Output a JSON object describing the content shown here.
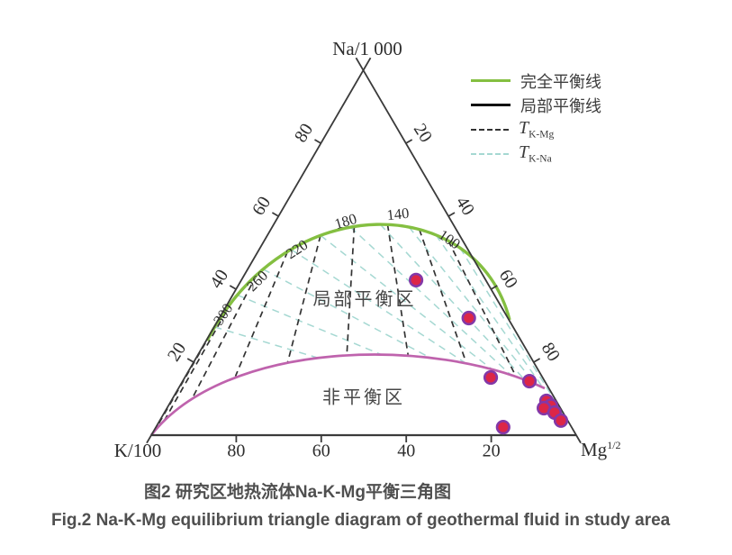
{
  "figure": {
    "caption_zh": "图2 研究区地热流体Na-K-Mg平衡三角图",
    "caption_en": "Fig.2 Na-K-Mg equilibrium triangle diagram of geothermal fluid in study area"
  },
  "legend": {
    "items": [
      {
        "label": "完全平衡线"
      },
      {
        "label": "局部平衡线"
      },
      {
        "label_main": "T",
        "label_sub": "K-Mg"
      },
      {
        "label_main": "T",
        "label_sub": "K-Na"
      }
    ]
  },
  "chart_data": {
    "type": "scatter",
    "subtype": "ternary-giggenbach",
    "apex_top_label": "Na/1 000",
    "apex_left_label": "K/100",
    "apex_right_label_base": "Mg",
    "apex_right_label_sup": "1/2",
    "zone_labels": [
      {
        "text": "局部平衡区",
        "x": 405,
        "y": 330
      },
      {
        "text": "非平衡区",
        "x": 404,
        "y": 439
      }
    ],
    "axis_ticks": {
      "fractions": [
        0.2,
        0.4,
        0.6,
        0.8
      ],
      "left_labels": [
        "20",
        "40",
        "60",
        "80"
      ],
      "right_labels": [
        "20",
        "40",
        "60",
        "80"
      ],
      "bottom_labels": [
        "80",
        "60",
        "40",
        "20"
      ]
    },
    "temperature_labels": [
      {
        "text": "300",
        "x": 248,
        "y": 349,
        "rot": -56
      },
      {
        "text": "260",
        "x": 286,
        "y": 312,
        "rot": -45
      },
      {
        "text": "220",
        "x": 330,
        "y": 277,
        "rot": -33
      },
      {
        "text": "180",
        "x": 384,
        "y": 246,
        "rot": -17
      },
      {
        "text": "140",
        "x": 442,
        "y": 238,
        "rot": -6
      },
      {
        "text": "100",
        "x": 499,
        "y": 266,
        "rot": 34
      }
    ],
    "isoline_attach": {
      "t_k_mg": [
        0.015,
        0.09,
        0.17,
        0.26,
        0.35,
        0.44,
        0.53,
        0.62,
        0.71,
        0.8,
        0.89,
        0.965
      ],
      "t_k_na": [
        0.03,
        0.11,
        0.19,
        0.27,
        0.35,
        0.43,
        0.51,
        0.59,
        0.67,
        0.75,
        0.83,
        0.91,
        0.97
      ]
    },
    "series": [
      {
        "name": "geothermal-fluid-samples",
        "points": [
          {
            "na": 0.425,
            "k": 0.164,
            "mg": 0.411
          },
          {
            "na": 0.321,
            "k": 0.092,
            "mg": 0.587
          },
          {
            "na": 0.158,
            "k": 0.122,
            "mg": 0.72
          },
          {
            "na": 0.148,
            "k": 0.036,
            "mg": 0.816
          },
          {
            "na": 0.094,
            "k": 0.023,
            "mg": 0.883
          },
          {
            "na": 0.081,
            "k": 0.019,
            "mg": 0.9
          },
          {
            "na": 0.074,
            "k": 0.039,
            "mg": 0.887
          },
          {
            "na": 0.062,
            "k": 0.02,
            "mg": 0.918
          },
          {
            "na": 0.04,
            "k": 0.016,
            "mg": 0.944
          },
          {
            "na": 0.022,
            "k": 0.161,
            "mg": 0.817
          }
        ]
      }
    ],
    "colors": {
      "full_equilibrium": "#84bf41",
      "partial_boundary": "#bf63ad",
      "t_k_mg": "#333333",
      "t_k_na": "#a5d8d2",
      "sample_fill": "#dc2647",
      "sample_ring": "#8338a8",
      "axis": "#3a3a3a",
      "caption": "#4f4f4f"
    }
  }
}
